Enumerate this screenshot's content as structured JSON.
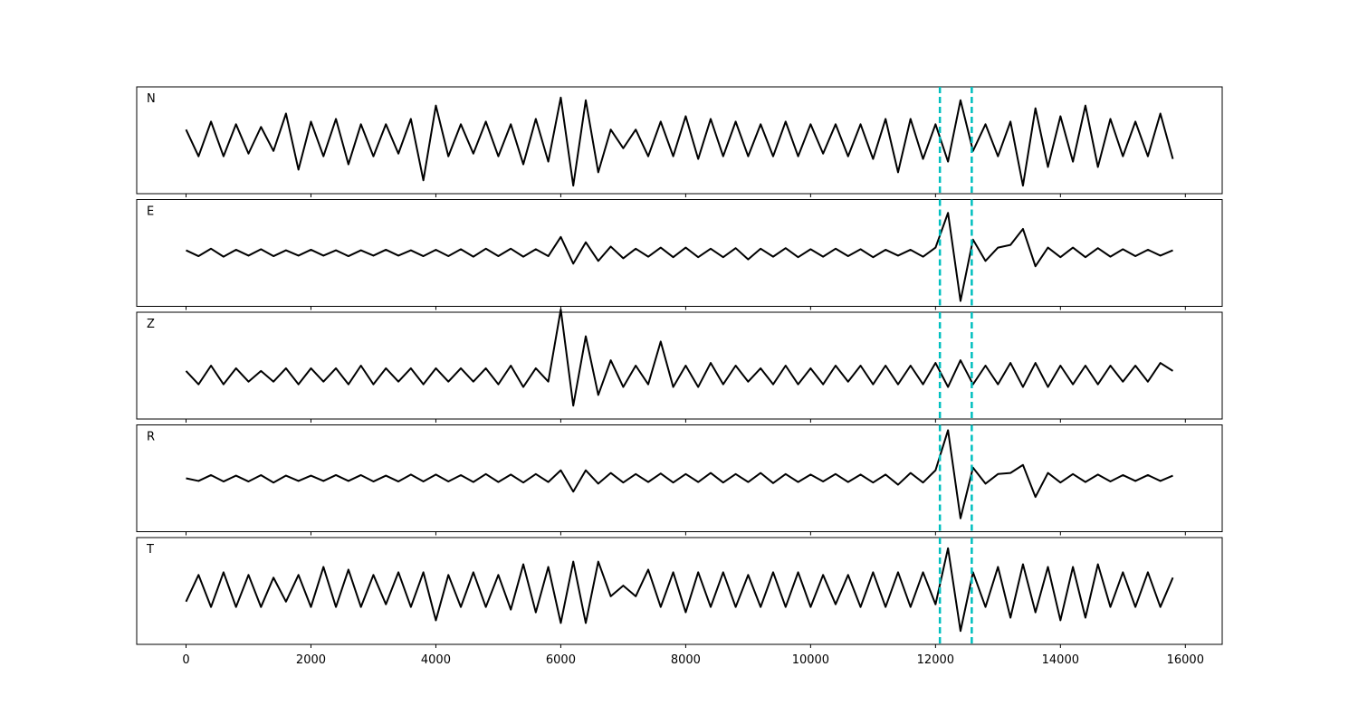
{
  "chart_data": {
    "type": "line",
    "x": [
      0,
      200,
      400,
      600,
      800,
      1000,
      1200,
      1400,
      1600,
      1800,
      2000,
      2200,
      2400,
      2600,
      2800,
      3000,
      3200,
      3400,
      3600,
      3800,
      4000,
      4200,
      4400,
      4600,
      4800,
      5000,
      5200,
      5400,
      5600,
      5800,
      6000,
      6200,
      6400,
      6600,
      6800,
      7000,
      7200,
      7400,
      7600,
      7800,
      8000,
      8200,
      8400,
      8600,
      8800,
      9000,
      9200,
      9400,
      9600,
      9800,
      10000,
      10200,
      10400,
      10600,
      10800,
      11000,
      11200,
      11400,
      11600,
      11800,
      12000,
      12200,
      12400,
      12600,
      12800,
      13000,
      13200,
      13400,
      13600,
      13800,
      14000,
      14200,
      14400,
      14600,
      14800,
      15000,
      15200,
      15400,
      15600,
      15800
    ],
    "series": [
      {
        "name": "N",
        "color": "#000000",
        "values": [
          0.2,
          -0.3,
          0.35,
          -0.3,
          0.3,
          -0.25,
          0.25,
          -0.2,
          0.5,
          -0.55,
          0.35,
          -0.3,
          0.4,
          -0.45,
          0.3,
          -0.3,
          0.3,
          -0.25,
          0.4,
          -0.75,
          0.65,
          -0.3,
          0.3,
          -0.25,
          0.35,
          -0.3,
          0.3,
          -0.45,
          0.4,
          -0.4,
          0.8,
          -0.85,
          0.75,
          -0.6,
          0.2,
          -0.15,
          0.2,
          -0.3,
          0.35,
          -0.3,
          0.45,
          -0.35,
          0.4,
          -0.3,
          0.35,
          -0.3,
          0.3,
          -0.3,
          0.35,
          -0.3,
          0.3,
          -0.25,
          0.3,
          -0.3,
          0.3,
          -0.35,
          0.4,
          -0.6,
          0.4,
          -0.35,
          0.3,
          -0.4,
          0.75,
          -0.2,
          0.3,
          -0.3,
          0.35,
          -0.85,
          0.6,
          -0.5,
          0.45,
          -0.4,
          0.65,
          -0.5,
          0.4,
          -0.3,
          0.35,
          -0.3,
          0.5,
          -0.35
        ]
      },
      {
        "name": "E",
        "color": "#000000",
        "values": [
          0.05,
          -0.06,
          0.08,
          -0.07,
          0.06,
          -0.05,
          0.07,
          -0.06,
          0.05,
          -0.05,
          0.06,
          -0.05,
          0.05,
          -0.06,
          0.05,
          -0.05,
          0.06,
          -0.05,
          0.05,
          -0.06,
          0.06,
          -0.06,
          0.07,
          -0.07,
          0.08,
          -0.06,
          0.08,
          -0.07,
          0.07,
          -0.06,
          0.3,
          -0.2,
          0.2,
          -0.15,
          0.12,
          -0.1,
          0.08,
          -0.07,
          0.1,
          -0.08,
          0.1,
          -0.08,
          0.08,
          -0.08,
          0.09,
          -0.12,
          0.08,
          -0.07,
          0.09,
          -0.08,
          0.07,
          -0.07,
          0.08,
          -0.06,
          0.07,
          -0.08,
          0.06,
          -0.05,
          0.06,
          -0.07,
          0.1,
          0.75,
          -0.9,
          0.25,
          -0.15,
          0.1,
          0.15,
          0.45,
          -0.25,
          0.1,
          -0.08,
          0.1,
          -0.08,
          0.09,
          -0.07,
          0.07,
          -0.06,
          0.06,
          -0.05,
          0.05
        ]
      },
      {
        "name": "Z",
        "color": "#000000",
        "values": [
          -0.1,
          -0.35,
          0.0,
          -0.35,
          -0.05,
          -0.3,
          -0.1,
          -0.3,
          -0.05,
          -0.35,
          -0.05,
          -0.3,
          -0.05,
          -0.35,
          0.0,
          -0.35,
          -0.05,
          -0.3,
          -0.05,
          -0.35,
          -0.05,
          -0.3,
          -0.05,
          -0.3,
          -0.05,
          -0.35,
          0.0,
          -0.4,
          -0.05,
          -0.3,
          1.05,
          -0.75,
          0.55,
          -0.55,
          0.1,
          -0.4,
          0.0,
          -0.35,
          0.45,
          -0.4,
          0.0,
          -0.4,
          0.05,
          -0.35,
          0.0,
          -0.3,
          -0.05,
          -0.35,
          0.0,
          -0.35,
          -0.05,
          -0.35,
          0.0,
          -0.3,
          0.0,
          -0.35,
          0.0,
          -0.35,
          0.0,
          -0.35,
          0.05,
          -0.4,
          0.1,
          -0.35,
          0.0,
          -0.35,
          0.05,
          -0.4,
          0.05,
          -0.4,
          0.0,
          -0.35,
          0.0,
          -0.35,
          0.0,
          -0.3,
          0.0,
          -0.3,
          0.05,
          -0.1
        ]
      },
      {
        "name": "R",
        "color": "#000000",
        "values": [
          0.0,
          -0.05,
          0.06,
          -0.06,
          0.05,
          -0.06,
          0.06,
          -0.08,
          0.05,
          -0.05,
          0.05,
          -0.05,
          0.06,
          -0.05,
          0.06,
          -0.06,
          0.05,
          -0.06,
          0.07,
          -0.06,
          0.07,
          -0.06,
          0.06,
          -0.07,
          0.08,
          -0.07,
          0.07,
          -0.08,
          0.08,
          -0.07,
          0.15,
          -0.25,
          0.15,
          -0.1,
          0.1,
          -0.08,
          0.08,
          -0.07,
          0.09,
          -0.08,
          0.08,
          -0.07,
          0.1,
          -0.08,
          0.08,
          -0.07,
          0.1,
          -0.09,
          0.08,
          -0.07,
          0.07,
          -0.06,
          0.08,
          -0.07,
          0.07,
          -0.08,
          0.07,
          -0.12,
          0.1,
          -0.08,
          0.15,
          0.9,
          -0.75,
          0.2,
          -0.1,
          0.08,
          0.1,
          0.25,
          -0.35,
          0.1,
          -0.08,
          0.08,
          -0.07,
          0.07,
          -0.06,
          0.06,
          -0.05,
          0.06,
          -0.05,
          0.05
        ]
      },
      {
        "name": "T",
        "color": "#000000",
        "values": [
          -0.2,
          0.3,
          -0.3,
          0.35,
          -0.3,
          0.3,
          -0.3,
          0.25,
          -0.2,
          0.3,
          -0.3,
          0.45,
          -0.3,
          0.4,
          -0.3,
          0.3,
          -0.25,
          0.35,
          -0.3,
          0.35,
          -0.55,
          0.3,
          -0.3,
          0.35,
          -0.3,
          0.3,
          -0.35,
          0.5,
          -0.4,
          0.45,
          -0.6,
          0.55,
          -0.6,
          0.55,
          -0.1,
          0.1,
          -0.1,
          0.4,
          -0.3,
          0.35,
          -0.4,
          0.35,
          -0.3,
          0.35,
          -0.3,
          0.3,
          -0.3,
          0.35,
          -0.3,
          0.35,
          -0.3,
          0.3,
          -0.25,
          0.3,
          -0.3,
          0.35,
          -0.3,
          0.35,
          -0.3,
          0.35,
          -0.25,
          0.8,
          -0.75,
          0.35,
          -0.3,
          0.45,
          -0.5,
          0.5,
          -0.4,
          0.45,
          -0.55,
          0.45,
          -0.5,
          0.5,
          -0.3,
          0.35,
          -0.3,
          0.35,
          -0.3,
          0.25
        ]
      }
    ],
    "vlines": [
      12070,
      12580
    ],
    "vline_color": "#00bfbf",
    "xlim": [
      -790,
      16590
    ],
    "xticks": [
      0,
      2000,
      4000,
      6000,
      8000,
      10000,
      12000,
      14000,
      16000
    ],
    "ylim": [
      -1,
      1
    ]
  }
}
